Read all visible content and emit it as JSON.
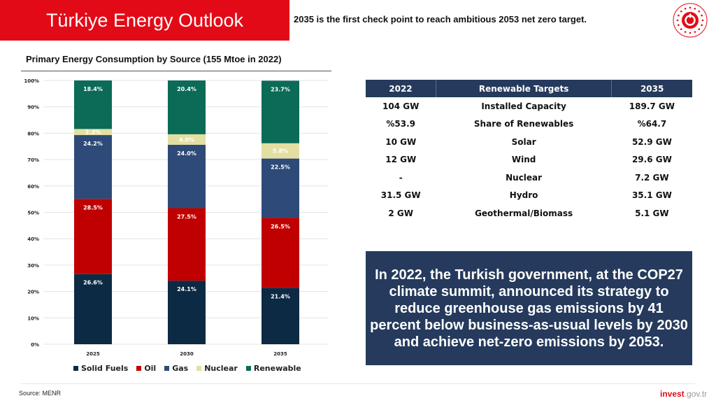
{
  "header": {
    "title": "Türkiye Energy Outlook",
    "tagline": "2035 is the first check point to reach ambitious 2053 net zero target."
  },
  "chart_data": {
    "type": "bar",
    "stacked": true,
    "title": "Primary Energy Consumption by Source (155 Mtoe in 2022)",
    "categories": [
      "2025",
      "2030",
      "2035"
    ],
    "ylim": [
      0,
      100
    ],
    "yticks": [
      "0%",
      "10%",
      "20%",
      "30%",
      "40%",
      "50%",
      "60%",
      "70%",
      "80%",
      "90%",
      "100%"
    ],
    "legend_position": "bottom",
    "series": [
      {
        "name": "Solid Fuels",
        "color": "#0d2a44",
        "values": [
          26.6,
          24.1,
          21.4
        ],
        "labels": [
          "26.6%",
          "24.1%",
          "21.4%"
        ]
      },
      {
        "name": "Oil",
        "color": "#c00000",
        "values": [
          28.5,
          27.5,
          26.5
        ],
        "labels": [
          "28.5%",
          "27.5%",
          "26.5%"
        ]
      },
      {
        "name": "Gas",
        "color": "#2e4a78",
        "values": [
          24.2,
          24.0,
          22.5
        ],
        "labels": [
          "24.2%",
          "24.0%",
          "22.5%"
        ]
      },
      {
        "name": "Nuclear",
        "color": "#e3dfa2",
        "values": [
          2.3,
          4.0,
          5.8
        ],
        "labels": [
          "2.3%",
          "4.0%",
          "5.8%"
        ]
      },
      {
        "name": "Renewable",
        "color": "#0b6b57",
        "values": [
          18.4,
          20.4,
          23.7
        ],
        "labels": [
          "18.4%",
          "20.4%",
          "23.7%"
        ]
      }
    ]
  },
  "table": {
    "headers": [
      "2022",
      "Renewable Targets",
      "2035"
    ],
    "rows": [
      [
        "104 GW",
        "Installed Capacity",
        "189.7 GW"
      ],
      [
        "%53.9",
        "Share of Renewables",
        "%64.7"
      ],
      [
        "10 GW",
        "Solar",
        "52.9 GW"
      ],
      [
        "12 GW",
        "Wind",
        "29.6 GW"
      ],
      [
        "-",
        "Nuclear",
        "7.2 GW"
      ],
      [
        "31.5 GW",
        "Hydro",
        "35.1 GW"
      ],
      [
        "2 GW",
        "Geothermal/Biomass",
        "5.1 GW"
      ]
    ]
  },
  "info_box": "In 2022, the Turkish government, at the COP27 climate summit, announced its strategy to reduce greenhouse gas emissions by 41 percent below business-as-usual levels by 2030 and achieve net-zero emissions by 2053.",
  "footer": {
    "source": "Source: MENR",
    "brand_bold": "invest",
    "brand_rest": ".gov.tr"
  },
  "colors": {
    "accent": "#e30a17",
    "navy": "#253a5c"
  }
}
